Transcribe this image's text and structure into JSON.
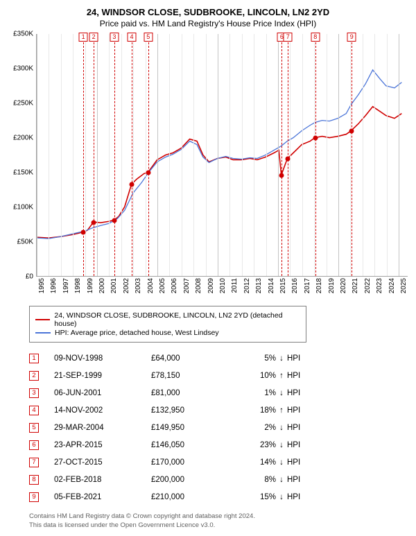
{
  "title": "24, WINDSOR CLOSE, SUDBROOKE, LINCOLN, LN2 2YD",
  "subtitle": "Price paid vs. HM Land Registry's House Price Index (HPI)",
  "chart": {
    "type": "line",
    "y": {
      "min": 0,
      "max": 350000,
      "step": 50000,
      "prefix": "£",
      "suffix": "K",
      "divisor": 1000
    },
    "x": {
      "min": 1995,
      "max": 2025.8,
      "ticks_start": 1995,
      "ticks_end": 2025,
      "tick_step": 1
    },
    "grid_light": "#e8e8e8",
    "grid_dark": "#c4c4c4",
    "series": [
      {
        "name": "24, WINDSOR CLOSE, SUDBROOKE, LINCOLN, LN2 2YD (detached house)",
        "color": "#d00000",
        "width": 1.6,
        "data": [
          [
            1995,
            56000
          ],
          [
            1996,
            55000
          ],
          [
            1997,
            57000
          ],
          [
            1998,
            60000
          ],
          [
            1998.5,
            62000
          ],
          [
            1998.86,
            64000
          ],
          [
            1999.2,
            66000
          ],
          [
            1999.72,
            78150
          ],
          [
            2000.3,
            77000
          ],
          [
            2001,
            79000
          ],
          [
            2001.43,
            81000
          ],
          [
            2001.8,
            86000
          ],
          [
            2002.3,
            100000
          ],
          [
            2002.87,
            132950
          ],
          [
            2003.3,
            140000
          ],
          [
            2003.9,
            148000
          ],
          [
            2004.24,
            149950
          ],
          [
            2005,
            168000
          ],
          [
            2005.7,
            175000
          ],
          [
            2006.3,
            178000
          ],
          [
            2007,
            185000
          ],
          [
            2007.7,
            198000
          ],
          [
            2008.3,
            195000
          ],
          [
            2008.8,
            175000
          ],
          [
            2009.3,
            165000
          ],
          [
            2010,
            170000
          ],
          [
            2010.7,
            172000
          ],
          [
            2011.3,
            168000
          ],
          [
            2012,
            168000
          ],
          [
            2012.7,
            170000
          ],
          [
            2013.3,
            168000
          ],
          [
            2014,
            172000
          ],
          [
            2014.7,
            178000
          ],
          [
            2015.1,
            182000
          ],
          [
            2015.31,
            146050
          ],
          [
            2015.6,
            160000
          ],
          [
            2015.82,
            170000
          ],
          [
            2016.3,
            178000
          ],
          [
            2017,
            190000
          ],
          [
            2017.7,
            195000
          ],
          [
            2018.09,
            200000
          ],
          [
            2018.7,
            202000
          ],
          [
            2019.3,
            200000
          ],
          [
            2020,
            202000
          ],
          [
            2020.7,
            205000
          ],
          [
            2021.1,
            210000
          ],
          [
            2021.7,
            220000
          ],
          [
            2022.3,
            232000
          ],
          [
            2022.9,
            245000
          ],
          [
            2023.5,
            238000
          ],
          [
            2024,
            232000
          ],
          [
            2024.7,
            228000
          ],
          [
            2025.3,
            235000
          ]
        ]
      },
      {
        "name": "HPI: Average price, detached house, West Lindsey",
        "color": "#4a74d8",
        "width": 1.3,
        "data": [
          [
            1995,
            55000
          ],
          [
            1996,
            54000
          ],
          [
            1997,
            57000
          ],
          [
            1998,
            61000
          ],
          [
            1999,
            65000
          ],
          [
            1999.7,
            70000
          ],
          [
            2000.3,
            73000
          ],
          [
            2001,
            76000
          ],
          [
            2001.7,
            83000
          ],
          [
            2002.3,
            95000
          ],
          [
            2003,
            120000
          ],
          [
            2003.7,
            135000
          ],
          [
            2004.3,
            150000
          ],
          [
            2005,
            165000
          ],
          [
            2005.7,
            172000
          ],
          [
            2006.3,
            176000
          ],
          [
            2007,
            183000
          ],
          [
            2007.7,
            195000
          ],
          [
            2008.3,
            190000
          ],
          [
            2008.8,
            172000
          ],
          [
            2009.3,
            164000
          ],
          [
            2010,
            170000
          ],
          [
            2010.7,
            173000
          ],
          [
            2011.3,
            170000
          ],
          [
            2012,
            169000
          ],
          [
            2012.7,
            171000
          ],
          [
            2013.3,
            170000
          ],
          [
            2014,
            175000
          ],
          [
            2014.7,
            182000
          ],
          [
            2015.3,
            188000
          ],
          [
            2015.8,
            195000
          ],
          [
            2016.3,
            200000
          ],
          [
            2017,
            210000
          ],
          [
            2017.7,
            218000
          ],
          [
            2018.1,
            222000
          ],
          [
            2018.7,
            225000
          ],
          [
            2019.3,
            224000
          ],
          [
            2020,
            228000
          ],
          [
            2020.7,
            235000
          ],
          [
            2021.1,
            248000
          ],
          [
            2021.7,
            262000
          ],
          [
            2022.3,
            278000
          ],
          [
            2022.9,
            298000
          ],
          [
            2023.5,
            285000
          ],
          [
            2024,
            275000
          ],
          [
            2024.7,
            272000
          ],
          [
            2025.3,
            280000
          ]
        ]
      }
    ],
    "markers": [
      {
        "n": 1,
        "x": 1998.86,
        "y": 64000
      },
      {
        "n": 2,
        "x": 1999.72,
        "y": 78150
      },
      {
        "n": 3,
        "x": 2001.43,
        "y": 81000
      },
      {
        "n": 4,
        "x": 2002.87,
        "y": 132950
      },
      {
        "n": 5,
        "x": 2004.24,
        "y": 149950
      },
      {
        "n": 6,
        "x": 2015.31,
        "y": 146050
      },
      {
        "n": 7,
        "x": 2015.82,
        "y": 170000
      },
      {
        "n": 8,
        "x": 2018.09,
        "y": 200000
      },
      {
        "n": 9,
        "x": 2021.1,
        "y": 210000
      }
    ]
  },
  "legend": [
    {
      "color": "#d00000",
      "label": "24, WINDSOR CLOSE, SUDBROOKE, LINCOLN, LN2 2YD (detached house)"
    },
    {
      "color": "#4a74d8",
      "label": "HPI: Average price, detached house, West Lindsey"
    }
  ],
  "sales": [
    {
      "n": "1",
      "date": "09-NOV-1998",
      "price": "£64,000",
      "pct": "5%",
      "dir": "↓",
      "suffix": "HPI"
    },
    {
      "n": "2",
      "date": "21-SEP-1999",
      "price": "£78,150",
      "pct": "10%",
      "dir": "↑",
      "suffix": "HPI"
    },
    {
      "n": "3",
      "date": "06-JUN-2001",
      "price": "£81,000",
      "pct": "1%",
      "dir": "↓",
      "suffix": "HPI"
    },
    {
      "n": "4",
      "date": "14-NOV-2002",
      "price": "£132,950",
      "pct": "18%",
      "dir": "↑",
      "suffix": "HPI"
    },
    {
      "n": "5",
      "date": "29-MAR-2004",
      "price": "£149,950",
      "pct": "2%",
      "dir": "↓",
      "suffix": "HPI"
    },
    {
      "n": "6",
      "date": "23-APR-2015",
      "price": "£146,050",
      "pct": "23%",
      "dir": "↓",
      "suffix": "HPI"
    },
    {
      "n": "7",
      "date": "27-OCT-2015",
      "price": "£170,000",
      "pct": "14%",
      "dir": "↓",
      "suffix": "HPI"
    },
    {
      "n": "8",
      "date": "02-FEB-2018",
      "price": "£200,000",
      "pct": "8%",
      "dir": "↓",
      "suffix": "HPI"
    },
    {
      "n": "9",
      "date": "05-FEB-2021",
      "price": "£210,000",
      "pct": "15%",
      "dir": "↓",
      "suffix": "HPI"
    }
  ],
  "footnote1": "Contains HM Land Registry data © Crown copyright and database right 2024.",
  "footnote2": "This data is licensed under the Open Government Licence v3.0."
}
